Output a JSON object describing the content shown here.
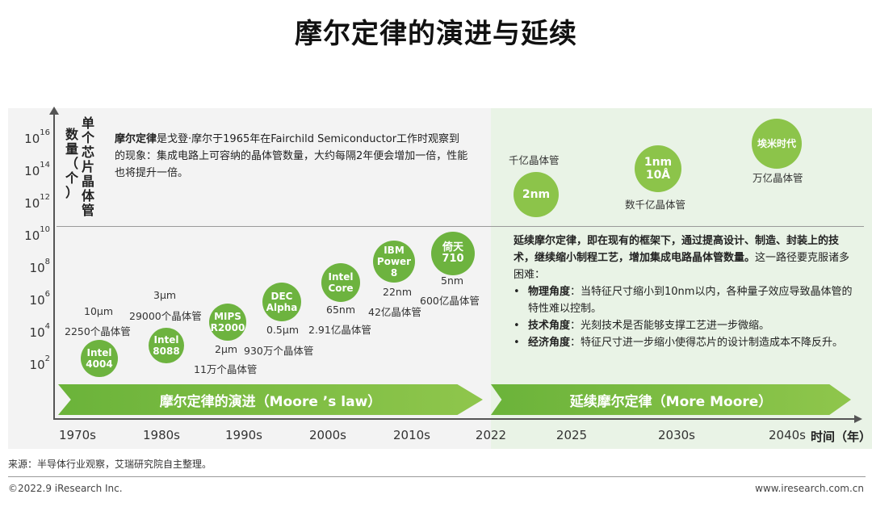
{
  "title": "摩尔定律的演进与延续",
  "y_axis": {
    "label_chars": [
      "单",
      "个",
      "芯",
      "片",
      "晶",
      "体",
      "管"
    ],
    "label_chars_2": [
      "数",
      "量",
      "（",
      "个",
      "）"
    ],
    "ticks": [
      {
        "base": "10",
        "exp": "16"
      },
      {
        "base": "10",
        "exp": "14"
      },
      {
        "base": "10",
        "exp": "12"
      },
      {
        "base": "10",
        "exp": "10"
      },
      {
        "base": "10",
        "exp": "8"
      },
      {
        "base": "10",
        "exp": "6"
      },
      {
        "base": "10",
        "exp": "4"
      },
      {
        "base": "10",
        "exp": "2"
      }
    ]
  },
  "x_axis": {
    "ticks": [
      "1970s",
      "1980s",
      "1990s",
      "2000s",
      "2010s",
      "2022",
      "2025",
      "2030s",
      "2040s"
    ],
    "label": "时间（年）"
  },
  "moore_definition": {
    "term": "摩尔定律",
    "text": "是戈登·摩尔于1965年在Fairchild Semiconductor工作时观察到的现象：集成电路上可容纳的晶体管数量，大约每隔2年便会增加一倍，性能也将提升一倍。"
  },
  "chips": [
    {
      "name": "Intel\n4004",
      "node": "10μm",
      "count": "2250个晶体管"
    },
    {
      "name": "Intel\n8088",
      "node": "3μm",
      "count": "29000个晶体管"
    },
    {
      "name": "MIPS\nR2000",
      "node": "2μm",
      "count": "11万个晶体管"
    },
    {
      "name": "DEC\nAlpha",
      "node": "0.5μm",
      "count": "930万个晶体管"
    },
    {
      "name": "Intel\nCore",
      "node": "65nm",
      "count": "2.91亿晶体管"
    },
    {
      "name": "IBM\nPower\n8",
      "node": "22nm",
      "count": "42亿晶体管"
    },
    {
      "name": "倚天\n710",
      "node": "5nm",
      "count": "600亿晶体管"
    }
  ],
  "future": [
    {
      "name": "2nm",
      "count": "千亿晶体管"
    },
    {
      "name": "1nm\n10Å",
      "count": "数千亿晶体管"
    },
    {
      "name": "埃米时代",
      "count": "万亿晶体管"
    }
  ],
  "more_moore": {
    "intro": "延续摩尔定律，即在现有的框架下，通过提高设计、制造、封装上的技术，继续缩小制程工艺，增加集成电路晶体管数量。",
    "intro_tail": "这一路径要克服诸多困难：",
    "bullets": [
      {
        "term": "物理角度",
        "text": "：当特征尺寸缩小到10nm以内，各种量子效应导致晶体管的特性难以控制。"
      },
      {
        "term": "技术角度",
        "text": "：光刻技术是否能够支撑工艺进一步微缩。"
      },
      {
        "term": "经济角度",
        "text": "：特征尺寸进一步缩小使得芯片的设计制造成本不降反升。"
      }
    ]
  },
  "bands": {
    "left": "摩尔定律的演进（Moore ’s law）",
    "right": "延续摩尔定律（More Moore）"
  },
  "source": "来源：半导体行业观察，艾瑞研究院自主整理。",
  "copyright": "©2022.9 iResearch Inc.",
  "website": "www.iresearch.com.cn",
  "colors": {
    "bubble_green": "#6db33f",
    "bubble_light": "#8cc44a",
    "panel_right": "#e9f3e6"
  }
}
